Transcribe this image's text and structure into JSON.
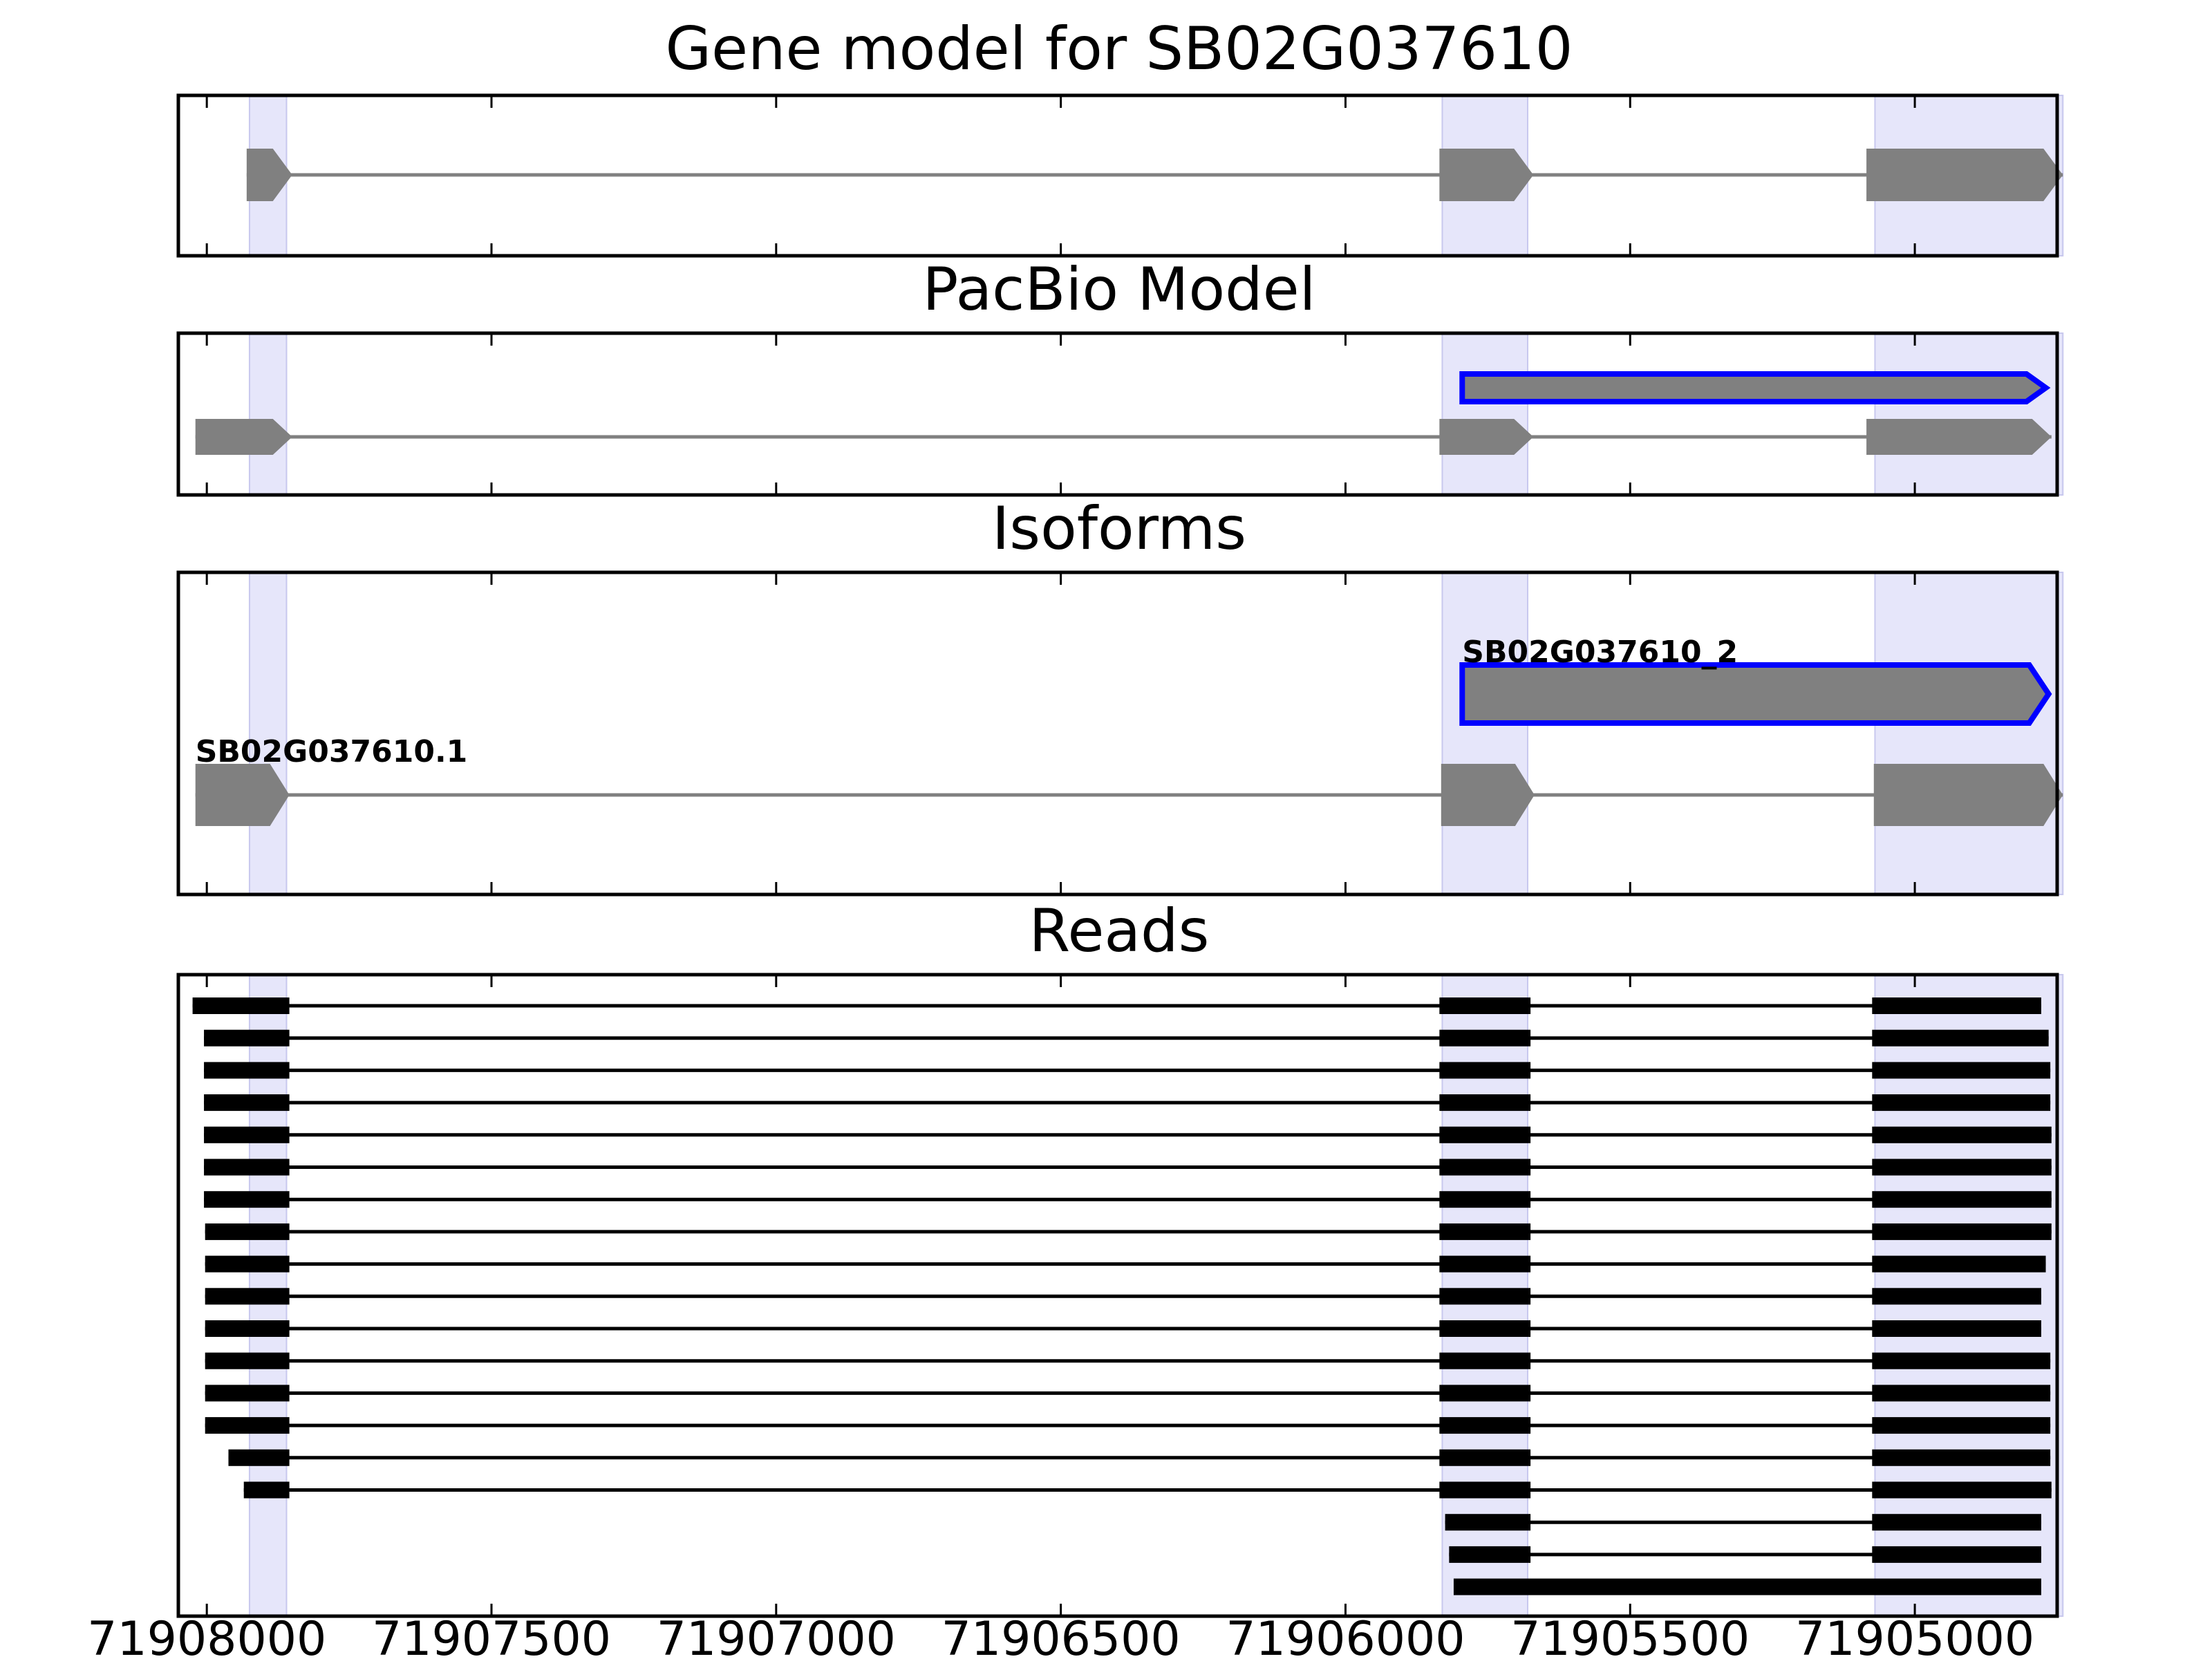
{
  "figure": {
    "panels": [
      {
        "key": "gene_model",
        "title": "Gene model for SB02G037610"
      },
      {
        "key": "pacbio",
        "title": "PacBio Model"
      },
      {
        "key": "isoforms",
        "title": "Isoforms"
      },
      {
        "key": "reads",
        "title": "Reads"
      }
    ]
  },
  "chart_data": {
    "type": "gene_structure",
    "axis": {
      "direction": "reversed",
      "xlim": [
        71908050,
        71904750
      ],
      "ticks": [
        71908000,
        71907500,
        71907000,
        71906500,
        71906000,
        71905500,
        71905000
      ]
    },
    "highlight_color": "#e6e6fa",
    "exon_color": "#808080",
    "selected_outline_color": "#0000ff",
    "read_color": "#000000",
    "highlights": [
      [
        71907925,
        71907860
      ],
      [
        71905830,
        71905680
      ],
      [
        71905070,
        71904740
      ]
    ],
    "gene_model": {
      "exons": [
        [
          71907930,
          71907850
        ],
        [
          71905835,
          71905670
        ],
        [
          71905085,
          71904740
        ]
      ]
    },
    "pacbio_model": {
      "models": [
        {
          "exons": [
            [
              71908020,
              71907850
            ],
            [
              71905835,
              71905670
            ],
            [
              71905085,
              71904760
            ]
          ],
          "selected": false
        },
        {
          "exons": [
            [
              71905795,
              71904770
            ]
          ],
          "selected": true
        }
      ]
    },
    "isoforms": [
      {
        "label": "SB02G037610.1",
        "exons": [
          [
            71908020,
            71907855
          ],
          [
            71905832,
            71905668
          ],
          [
            71905072,
            71904740
          ]
        ],
        "selected": false
      },
      {
        "label": "SB02G037610_2",
        "exons": [
          [
            71905795,
            71904765
          ]
        ],
        "selected": true
      }
    ],
    "reads": [
      [
        [
          71908025,
          71907855
        ],
        [
          71905835,
          71905675
        ],
        [
          71905075,
          71904778
        ]
      ],
      [
        [
          71908005,
          71907855
        ],
        [
          71905835,
          71905675
        ],
        [
          71905075,
          71904765
        ]
      ],
      [
        [
          71908005,
          71907855
        ],
        [
          71905835,
          71905675
        ],
        [
          71905075,
          71904762
        ]
      ],
      [
        [
          71908005,
          71907855
        ],
        [
          71905835,
          71905675
        ],
        [
          71905075,
          71904762
        ]
      ],
      [
        [
          71908005,
          71907855
        ],
        [
          71905835,
          71905675
        ],
        [
          71905075,
          71904760
        ]
      ],
      [
        [
          71908005,
          71907855
        ],
        [
          71905835,
          71905675
        ],
        [
          71905075,
          71904760
        ]
      ],
      [
        [
          71908005,
          71907855
        ],
        [
          71905835,
          71905675
        ],
        [
          71905075,
          71904760
        ]
      ],
      [
        [
          71908003,
          71907855
        ],
        [
          71905835,
          71905675
        ],
        [
          71905075,
          71904760
        ]
      ],
      [
        [
          71908003,
          71907855
        ],
        [
          71905835,
          71905675
        ],
        [
          71905075,
          71904770
        ]
      ],
      [
        [
          71908003,
          71907855
        ],
        [
          71905835,
          71905675
        ],
        [
          71905075,
          71904778
        ]
      ],
      [
        [
          71908003,
          71907855
        ],
        [
          71905835,
          71905675
        ],
        [
          71905075,
          71904778
        ]
      ],
      [
        [
          71908003,
          71907855
        ],
        [
          71905835,
          71905675
        ],
        [
          71905075,
          71904762
        ]
      ],
      [
        [
          71908003,
          71907855
        ],
        [
          71905835,
          71905675
        ],
        [
          71905075,
          71904762
        ]
      ],
      [
        [
          71908003,
          71907855
        ],
        [
          71905835,
          71905675
        ],
        [
          71905075,
          71904762
        ]
      ],
      [
        [
          71907962,
          71907855
        ],
        [
          71905835,
          71905675
        ],
        [
          71905075,
          71904762
        ]
      ],
      [
        [
          71907935,
          71907855
        ],
        [
          71905835,
          71905675
        ],
        [
          71905075,
          71904760
        ]
      ],
      [
        [
          71905825,
          71905675
        ],
        [
          71905075,
          71904778
        ]
      ],
      [
        [
          71905818,
          71905675
        ],
        [
          71905075,
          71904778
        ]
      ],
      [
        [
          71905810,
          71904778
        ]
      ]
    ]
  }
}
